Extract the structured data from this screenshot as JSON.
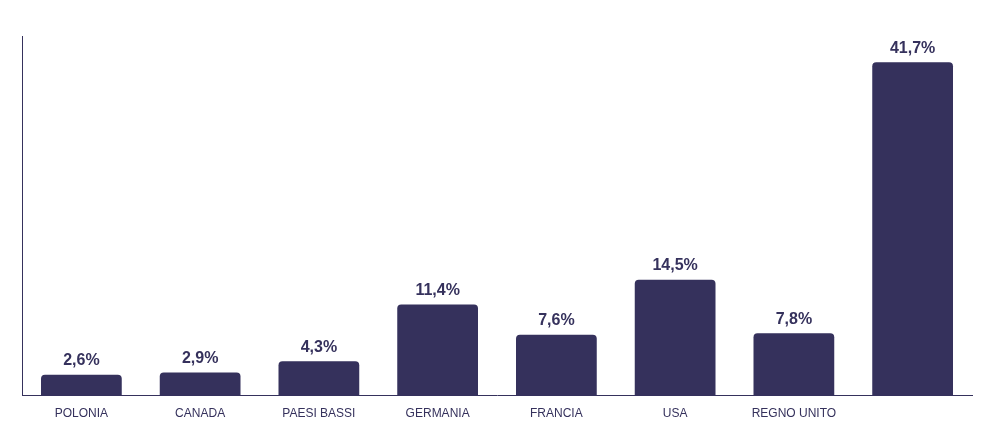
{
  "chart_data": {
    "type": "bar",
    "categories": [
      "POLONIA",
      "CANADA",
      "PAESI BASSI",
      "GERMANIA",
      "FRANCIA",
      "USA",
      "REGNO UNITO",
      null
    ],
    "values": [
      2.6,
      2.9,
      4.3,
      11.4,
      7.6,
      14.5,
      7.8,
      41.7
    ],
    "value_labels": [
      "2,6%",
      "2,9%",
      "4,3%",
      "11,4%",
      "7,6%",
      "14,5%",
      "7,8%",
      "41,7%"
    ],
    "color": "#35315c",
    "ylim": [
      0,
      45
    ],
    "grid": false,
    "data_labels": true,
    "tick_labels": "x"
  }
}
